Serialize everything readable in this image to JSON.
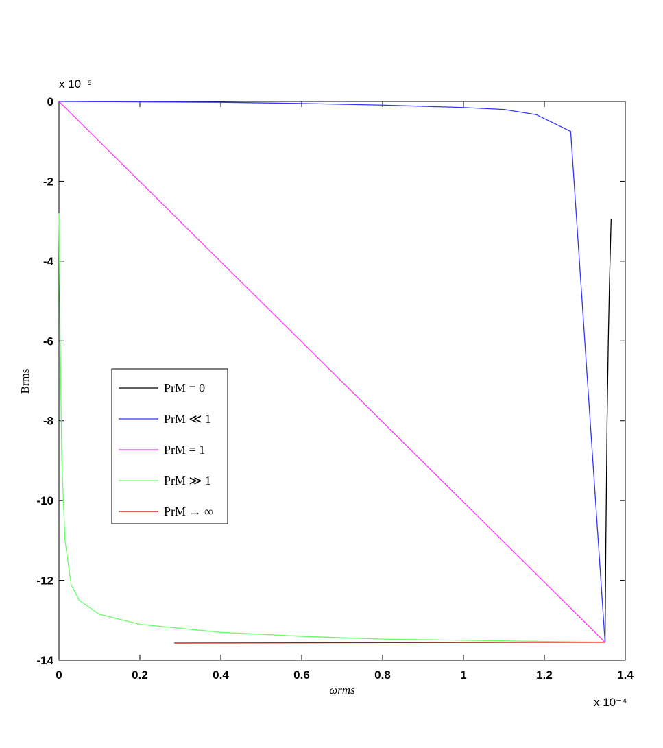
{
  "chart_data": {
    "type": "line",
    "x_label": "ωrms",
    "y_label": "Brms",
    "x_scale_label": "x 10⁻⁴",
    "y_scale_label": "x 10⁻⁵",
    "xlim": [
      0,
      1.4
    ],
    "ylim": [
      -14,
      0
    ],
    "xticks": [
      0,
      0.2,
      0.4,
      0.6,
      0.8,
      1,
      1.2,
      1.4
    ],
    "yticks": [
      0,
      -2,
      -4,
      -6,
      -8,
      -10,
      -12,
      -14
    ],
    "grid": false,
    "legend": "center-left",
    "series": [
      {
        "name": "PrM = 0",
        "color": "#000000",
        "x": [
          1.35,
          1.352,
          1.355,
          1.358,
          1.361,
          1.365
        ],
        "values": [
          -13.55,
          -11,
          -8,
          -6,
          -4.5,
          -2.95
        ]
      },
      {
        "name": "PrM ≪ 1",
        "color": "#3333ff",
        "x": [
          0,
          0.4,
          0.6,
          0.8,
          1.0,
          1.1,
          1.18,
          1.265,
          1.35
        ],
        "values": [
          0,
          -0.02,
          -0.05,
          -0.09,
          -0.15,
          -0.2,
          -0.33,
          -0.75,
          -13.55
        ]
      },
      {
        "name": "PrM = 1",
        "color": "#ff33ff",
        "x": [
          0,
          1.35
        ],
        "values": [
          0,
          -13.55
        ]
      },
      {
        "name": "PrM ≫ 1",
        "color": "#66ff66",
        "x": [
          0,
          0.003,
          0.007,
          0.015,
          0.03,
          0.05,
          0.1,
          0.2,
          0.4,
          0.6,
          0.8,
          1.0,
          1.35
        ],
        "values": [
          -2.8,
          -6,
          -9,
          -11,
          -12.1,
          -12.5,
          -12.85,
          -13.1,
          -13.3,
          -13.4,
          -13.47,
          -13.5,
          -13.55
        ]
      },
      {
        "name": "PrM → ∞",
        "color": "#cc0000",
        "x": [
          0.285,
          1.35
        ],
        "values": [
          -13.57,
          -13.55
        ]
      }
    ]
  }
}
